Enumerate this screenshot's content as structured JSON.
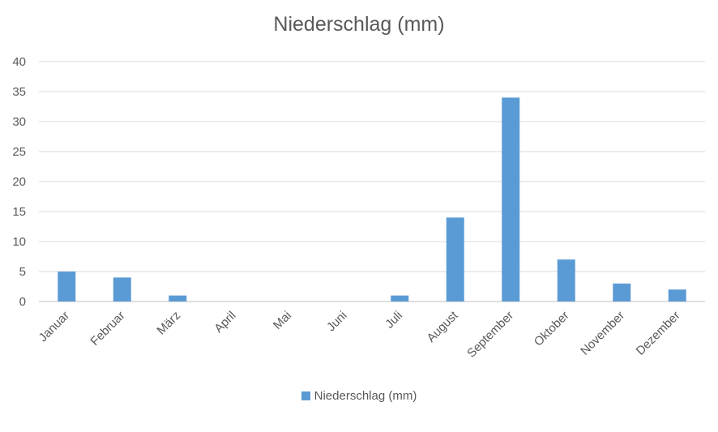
{
  "chart_data": {
    "type": "bar",
    "title": "Niederschlag (mm)",
    "categories": [
      "Januar",
      "Februar",
      "März",
      "April",
      "Mai",
      "Juni",
      "Juli",
      "August",
      "September",
      "Oktober",
      "November",
      "Dezember"
    ],
    "series": [
      {
        "name": "Niederschlag (mm)",
        "values": [
          5,
          4,
          1,
          0,
          0,
          0,
          1,
          14,
          34,
          7,
          3,
          2
        ],
        "color": "#5b9bd5"
      }
    ],
    "ylim": [
      0,
      40
    ],
    "yticks": [
      0,
      5,
      10,
      15,
      20,
      25,
      30,
      35,
      40
    ],
    "grid": true,
    "legend_position": "bottom"
  }
}
